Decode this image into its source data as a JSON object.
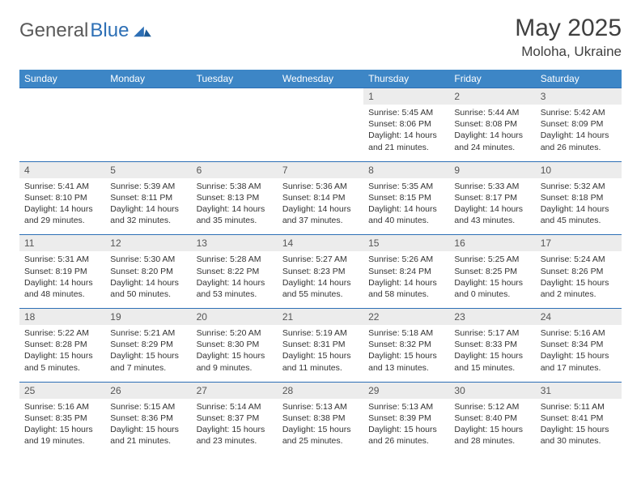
{
  "logo": {
    "general": "General",
    "blue": "Blue"
  },
  "title": "May 2025",
  "location": "Moloha, Ukraine",
  "colors": {
    "header_bg": "#3d86c6",
    "header_text": "#ffffff",
    "daynum_bg": "#ececec",
    "cell_border": "#2d6fb5",
    "body_text": "#333333",
    "title_text": "#404040",
    "logo_gray": "#5a5a5a",
    "logo_blue": "#2d6fb5"
  },
  "weekdays": [
    "Sunday",
    "Monday",
    "Tuesday",
    "Wednesday",
    "Thursday",
    "Friday",
    "Saturday"
  ],
  "weeks": [
    [
      {
        "n": "",
        "sr": "",
        "ss": "",
        "dl": ""
      },
      {
        "n": "",
        "sr": "",
        "ss": "",
        "dl": ""
      },
      {
        "n": "",
        "sr": "",
        "ss": "",
        "dl": ""
      },
      {
        "n": "",
        "sr": "",
        "ss": "",
        "dl": ""
      },
      {
        "n": "1",
        "sr": "Sunrise: 5:45 AM",
        "ss": "Sunset: 8:06 PM",
        "dl": "Daylight: 14 hours and 21 minutes."
      },
      {
        "n": "2",
        "sr": "Sunrise: 5:44 AM",
        "ss": "Sunset: 8:08 PM",
        "dl": "Daylight: 14 hours and 24 minutes."
      },
      {
        "n": "3",
        "sr": "Sunrise: 5:42 AM",
        "ss": "Sunset: 8:09 PM",
        "dl": "Daylight: 14 hours and 26 minutes."
      }
    ],
    [
      {
        "n": "4",
        "sr": "Sunrise: 5:41 AM",
        "ss": "Sunset: 8:10 PM",
        "dl": "Daylight: 14 hours and 29 minutes."
      },
      {
        "n": "5",
        "sr": "Sunrise: 5:39 AM",
        "ss": "Sunset: 8:11 PM",
        "dl": "Daylight: 14 hours and 32 minutes."
      },
      {
        "n": "6",
        "sr": "Sunrise: 5:38 AM",
        "ss": "Sunset: 8:13 PM",
        "dl": "Daylight: 14 hours and 35 minutes."
      },
      {
        "n": "7",
        "sr": "Sunrise: 5:36 AM",
        "ss": "Sunset: 8:14 PM",
        "dl": "Daylight: 14 hours and 37 minutes."
      },
      {
        "n": "8",
        "sr": "Sunrise: 5:35 AM",
        "ss": "Sunset: 8:15 PM",
        "dl": "Daylight: 14 hours and 40 minutes."
      },
      {
        "n": "9",
        "sr": "Sunrise: 5:33 AM",
        "ss": "Sunset: 8:17 PM",
        "dl": "Daylight: 14 hours and 43 minutes."
      },
      {
        "n": "10",
        "sr": "Sunrise: 5:32 AM",
        "ss": "Sunset: 8:18 PM",
        "dl": "Daylight: 14 hours and 45 minutes."
      }
    ],
    [
      {
        "n": "11",
        "sr": "Sunrise: 5:31 AM",
        "ss": "Sunset: 8:19 PM",
        "dl": "Daylight: 14 hours and 48 minutes."
      },
      {
        "n": "12",
        "sr": "Sunrise: 5:30 AM",
        "ss": "Sunset: 8:20 PM",
        "dl": "Daylight: 14 hours and 50 minutes."
      },
      {
        "n": "13",
        "sr": "Sunrise: 5:28 AM",
        "ss": "Sunset: 8:22 PM",
        "dl": "Daylight: 14 hours and 53 minutes."
      },
      {
        "n": "14",
        "sr": "Sunrise: 5:27 AM",
        "ss": "Sunset: 8:23 PM",
        "dl": "Daylight: 14 hours and 55 minutes."
      },
      {
        "n": "15",
        "sr": "Sunrise: 5:26 AM",
        "ss": "Sunset: 8:24 PM",
        "dl": "Daylight: 14 hours and 58 minutes."
      },
      {
        "n": "16",
        "sr": "Sunrise: 5:25 AM",
        "ss": "Sunset: 8:25 PM",
        "dl": "Daylight: 15 hours and 0 minutes."
      },
      {
        "n": "17",
        "sr": "Sunrise: 5:24 AM",
        "ss": "Sunset: 8:26 PM",
        "dl": "Daylight: 15 hours and 2 minutes."
      }
    ],
    [
      {
        "n": "18",
        "sr": "Sunrise: 5:22 AM",
        "ss": "Sunset: 8:28 PM",
        "dl": "Daylight: 15 hours and 5 minutes."
      },
      {
        "n": "19",
        "sr": "Sunrise: 5:21 AM",
        "ss": "Sunset: 8:29 PM",
        "dl": "Daylight: 15 hours and 7 minutes."
      },
      {
        "n": "20",
        "sr": "Sunrise: 5:20 AM",
        "ss": "Sunset: 8:30 PM",
        "dl": "Daylight: 15 hours and 9 minutes."
      },
      {
        "n": "21",
        "sr": "Sunrise: 5:19 AM",
        "ss": "Sunset: 8:31 PM",
        "dl": "Daylight: 15 hours and 11 minutes."
      },
      {
        "n": "22",
        "sr": "Sunrise: 5:18 AM",
        "ss": "Sunset: 8:32 PM",
        "dl": "Daylight: 15 hours and 13 minutes."
      },
      {
        "n": "23",
        "sr": "Sunrise: 5:17 AM",
        "ss": "Sunset: 8:33 PM",
        "dl": "Daylight: 15 hours and 15 minutes."
      },
      {
        "n": "24",
        "sr": "Sunrise: 5:16 AM",
        "ss": "Sunset: 8:34 PM",
        "dl": "Daylight: 15 hours and 17 minutes."
      }
    ],
    [
      {
        "n": "25",
        "sr": "Sunrise: 5:16 AM",
        "ss": "Sunset: 8:35 PM",
        "dl": "Daylight: 15 hours and 19 minutes."
      },
      {
        "n": "26",
        "sr": "Sunrise: 5:15 AM",
        "ss": "Sunset: 8:36 PM",
        "dl": "Daylight: 15 hours and 21 minutes."
      },
      {
        "n": "27",
        "sr": "Sunrise: 5:14 AM",
        "ss": "Sunset: 8:37 PM",
        "dl": "Daylight: 15 hours and 23 minutes."
      },
      {
        "n": "28",
        "sr": "Sunrise: 5:13 AM",
        "ss": "Sunset: 8:38 PM",
        "dl": "Daylight: 15 hours and 25 minutes."
      },
      {
        "n": "29",
        "sr": "Sunrise: 5:13 AM",
        "ss": "Sunset: 8:39 PM",
        "dl": "Daylight: 15 hours and 26 minutes."
      },
      {
        "n": "30",
        "sr": "Sunrise: 5:12 AM",
        "ss": "Sunset: 8:40 PM",
        "dl": "Daylight: 15 hours and 28 minutes."
      },
      {
        "n": "31",
        "sr": "Sunrise: 5:11 AM",
        "ss": "Sunset: 8:41 PM",
        "dl": "Daylight: 15 hours and 30 minutes."
      }
    ]
  ]
}
